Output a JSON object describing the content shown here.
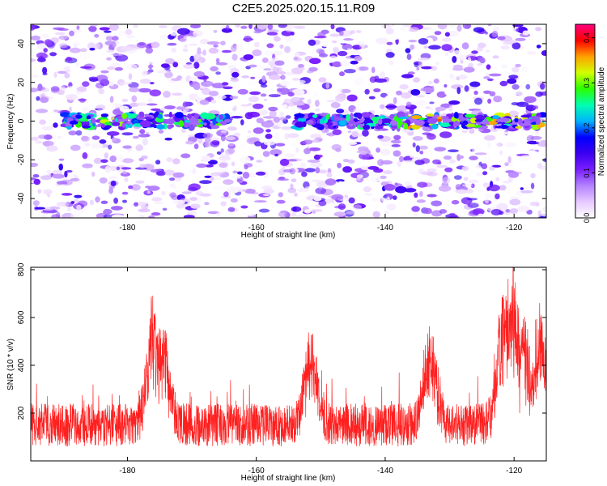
{
  "title": "C2E5.2025.020.15.11.R09",
  "chart_data": [
    {
      "type": "heatmap",
      "xlabel": "Height of straight line (km)",
      "ylabel": "Frequency (Hz)",
      "xlim": [
        -195,
        -115
      ],
      "ylim": [
        -50,
        50
      ],
      "xticks": [
        -180,
        -160,
        -140,
        -120
      ],
      "yticks": [
        -40,
        -20,
        0,
        20,
        40
      ],
      "grid": false,
      "colorbar": {
        "label": "Normalized spectral amplitude",
        "range": [
          0,
          0.43
        ],
        "ticks": [
          0.0,
          0.1,
          0.2,
          0.3,
          0.4
        ],
        "colormap": [
          "#ffffff",
          "#e6c8ff",
          "#b482ff",
          "#7a1eff",
          "#3c00f0",
          "#0000ff",
          "#00b4ff",
          "#00ffb0",
          "#2aff00",
          "#d2ff00",
          "#ffa000",
          "#ff0000",
          "#ff0080"
        ]
      },
      "band_frequency_hz": 0,
      "band_segments": [
        {
          "from": -190,
          "to": -179,
          "peak": 0.33
        },
        {
          "from": -179,
          "to": -164,
          "peak": 0.3
        },
        {
          "from": -154,
          "to": -138,
          "peak": 0.28
        },
        {
          "from": -138,
          "to": -115.5,
          "peak": 0.38
        }
      ]
    },
    {
      "type": "line",
      "xlabel": "Height of straight line (km)",
      "ylabel": "SNR (10 * v/v)",
      "xlim": [
        -195,
        -115
      ],
      "ylim": [
        0,
        810
      ],
      "xticks": [
        -180,
        -160,
        -140,
        -120
      ],
      "yticks": [
        200,
        400,
        600,
        800
      ],
      "grid": false,
      "series": [
        {
          "color": "#ff2020",
          "baseline": 150,
          "peaks": [
            {
              "x": -176.0,
              "y": 635
            },
            {
              "x": -174.5,
              "y": 560
            },
            {
              "x": -151.5,
              "y": 520
            },
            {
              "x": -133.0,
              "y": 535
            },
            {
              "x": -121.5,
              "y": 740
            },
            {
              "x": -120.2,
              "y": 810
            },
            {
              "x": -118.5,
              "y": 590
            },
            {
              "x": -116.0,
              "y": 590
            }
          ]
        }
      ]
    }
  ]
}
